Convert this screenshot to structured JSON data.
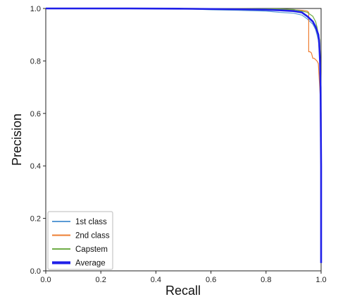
{
  "chart_data": {
    "type": "line",
    "title": "",
    "xlabel": "Recall",
    "ylabel": "Precision",
    "xlim": [
      0.0,
      1.0
    ],
    "ylim": [
      0.0,
      1.0
    ],
    "xticks": [
      "0.0",
      "0.2",
      "0.4",
      "0.6",
      "0.8",
      "1.0"
    ],
    "yticks": [
      "0.0",
      "0.2",
      "0.4",
      "0.6",
      "0.8",
      "1.0"
    ],
    "grid": false,
    "legend_position": "bottom-left",
    "series": [
      {
        "name": "1st class",
        "color": "#5b9bd5",
        "x": [
          0.0,
          0.3,
          0.5,
          0.6,
          0.7,
          0.8,
          0.85,
          0.9,
          0.93,
          0.95,
          0.97,
          0.98,
          0.99,
          0.995,
          1.0,
          1.0,
          1.0
        ],
        "y": [
          1.0,
          1.0,
          0.999,
          0.995,
          0.993,
          0.99,
          0.985,
          0.982,
          0.975,
          0.96,
          0.94,
          0.92,
          0.88,
          0.82,
          0.6,
          0.15,
          0.03
        ]
      },
      {
        "name": "2nd class",
        "color": "#ed7d31",
        "x": [
          0.0,
          0.5,
          0.7,
          0.8,
          0.85,
          0.9,
          0.93,
          0.95,
          0.955,
          0.955,
          0.96,
          0.965,
          0.97,
          0.975,
          0.985,
          0.99,
          0.995,
          1.0,
          1.0,
          1.0
        ],
        "y": [
          1.0,
          1.0,
          0.999,
          0.998,
          0.997,
          0.995,
          0.993,
          0.99,
          0.985,
          0.835,
          0.835,
          0.83,
          0.81,
          0.81,
          0.8,
          0.79,
          0.7,
          0.6,
          0.3,
          0.03
        ]
      },
      {
        "name": "Capstem",
        "color": "#70ad47",
        "x": [
          0.0,
          0.5,
          0.7,
          0.85,
          0.9,
          0.93,
          0.95,
          0.97,
          0.98,
          0.985,
          0.99,
          0.995,
          1.0,
          1.0
        ],
        "y": [
          1.0,
          1.0,
          0.999,
          0.998,
          0.996,
          0.99,
          0.985,
          0.97,
          0.95,
          0.93,
          0.9,
          0.88,
          0.7,
          0.03
        ]
      },
      {
        "name": "Average",
        "color": "#1f1fe8",
        "x": [
          0.0,
          0.3,
          0.5,
          0.6,
          0.7,
          0.8,
          0.85,
          0.9,
          0.93,
          0.95,
          0.97,
          0.98,
          0.99,
          0.993,
          0.996,
          0.998,
          1.0,
          1.0
        ],
        "y": [
          1.0,
          1.0,
          0.999,
          0.998,
          0.997,
          0.995,
          0.993,
          0.99,
          0.985,
          0.97,
          0.95,
          0.93,
          0.9,
          0.87,
          0.8,
          0.7,
          0.4,
          0.03
        ]
      }
    ]
  }
}
